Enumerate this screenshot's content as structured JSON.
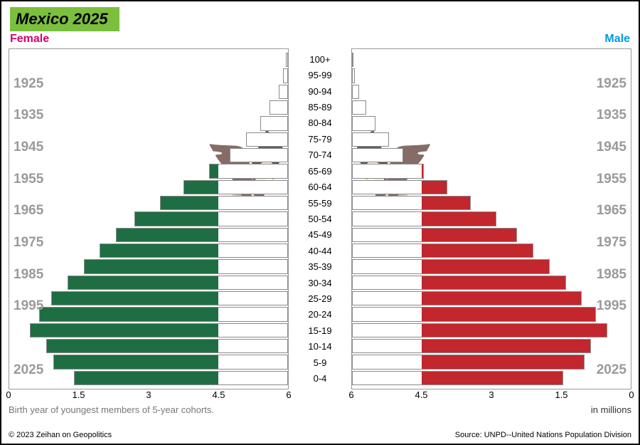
{
  "title": "Mexico 2025",
  "title_bg": "#7bbf3f",
  "title_color": "#000000",
  "labels": {
    "female": "Female",
    "female_color": "#d6006c",
    "male": "Male",
    "male_color": "#0099e6",
    "axis_caption_left": "Birth year of youngest members of 5-year cohorts.",
    "axis_caption_right": "in millions",
    "footer_left": "© 2023 Zeihan on Geopolitics",
    "footer_right": "Source: UNPD--United Nations Population Division"
  },
  "colors": {
    "flag_green": "#1f6e43",
    "flag_red": "#c1272d",
    "flag_white": "#ffffff",
    "bar_outline": "#8a8a8a",
    "year_text": "#9a9a9a",
    "eagle": "#6b4a1f"
  },
  "axis": {
    "max": 6,
    "ticks": [
      6,
      4.5,
      3,
      1.5,
      0
    ],
    "band_threshold": 1.5
  },
  "birth_years": [
    "1925",
    "1935",
    "1945",
    "1955",
    "1965",
    "1975",
    "1985",
    "1995",
    "",
    "2025"
  ],
  "age_labels": [
    "100+",
    "95-99",
    "90-94",
    "85-89",
    "80-84",
    "75-79",
    "70-74",
    "65-69",
    "60-64",
    "55-59",
    "50-54",
    "45-49",
    "40-44",
    "35-39",
    "30-34",
    "25-29",
    "20-24",
    "15-19",
    "10-14",
    "5-9",
    "0-4"
  ],
  "female": [
    0.05,
    0.1,
    0.2,
    0.4,
    0.6,
    0.9,
    1.25,
    1.7,
    2.25,
    2.75,
    3.3,
    3.7,
    4.05,
    4.4,
    4.75,
    5.1,
    5.35,
    5.55,
    5.2,
    5.05,
    4.6
  ],
  "male": [
    0.03,
    0.06,
    0.15,
    0.3,
    0.5,
    0.8,
    1.1,
    1.55,
    2.05,
    2.55,
    3.1,
    3.55,
    3.9,
    4.25,
    4.6,
    4.95,
    5.25,
    5.5,
    5.15,
    5.0,
    4.55
  ]
}
